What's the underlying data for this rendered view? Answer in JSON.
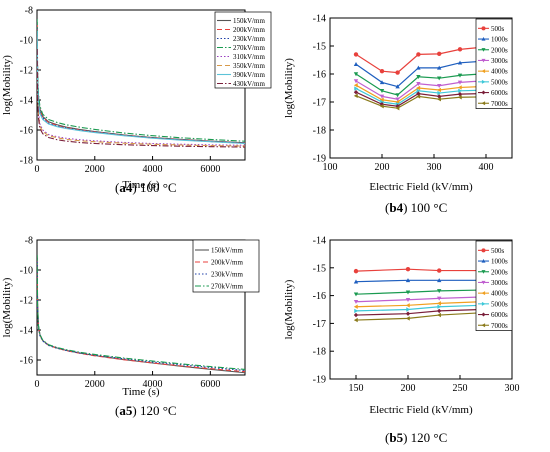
{
  "chart_data": [
    {
      "type": "line",
      "panel": "a4",
      "caption_id": "a4",
      "caption_rest": " 100 °C",
      "xlabel": "Time (s)",
      "ylabel": "log(Mobility)",
      "xlim": [
        0,
        7200
      ],
      "ylim": [
        -18,
        -8
      ],
      "xticks": [
        "0",
        "2000",
        "4000",
        "6000"
      ],
      "xtick_values": [
        0,
        2000,
        4000,
        6000
      ],
      "yticks": [
        "-8",
        "-10",
        "-12",
        "-14",
        "-16",
        "-18"
      ],
      "ytick_values": [
        -8,
        -10,
        -12,
        -14,
        -16,
        -18
      ],
      "legend_position": "top-right",
      "series": [
        {
          "name": "150kV/mm",
          "color": "#555555",
          "dash": "none",
          "x": [
            5,
            20,
            50,
            100,
            200,
            400,
            700,
            1000,
            1500,
            2000,
            3000,
            4000,
            5000,
            6000,
            7200
          ],
          "y": [
            -8.8,
            -12.2,
            -13.8,
            -14.6,
            -15.1,
            -15.45,
            -15.65,
            -15.8,
            -15.97,
            -16.1,
            -16.33,
            -16.5,
            -16.63,
            -16.74,
            -16.85
          ]
        },
        {
          "name": "200kV/mm",
          "color": "#e8413c",
          "dash": "5,3",
          "x": [
            5,
            20,
            50,
            100,
            200,
            400,
            700,
            1000,
            1500,
            2000,
            3000,
            4000,
            5000,
            6000,
            7200
          ],
          "y": [
            -9.0,
            -12.3,
            -13.9,
            -14.7,
            -15.15,
            -15.5,
            -15.7,
            -15.85,
            -16.0,
            -16.13,
            -16.35,
            -16.52,
            -16.65,
            -16.76,
            -16.88
          ]
        },
        {
          "name": "230kV/mm",
          "color": "#1f3fa8",
          "dash": "1.5,2",
          "x": [
            5,
            20,
            50,
            100,
            200,
            400,
            700,
            1000,
            1500,
            2000,
            3000,
            4000,
            5000,
            6000,
            7200
          ],
          "y": [
            -9.2,
            -12.4,
            -14.0,
            -14.8,
            -15.2,
            -15.55,
            -15.73,
            -15.87,
            -16.02,
            -16.14,
            -16.36,
            -16.53,
            -16.66,
            -16.77,
            -16.88
          ]
        },
        {
          "name": "270kV/mm",
          "color": "#1a9a50",
          "dash": "6,2,1.5,2",
          "x": [
            5,
            20,
            50,
            100,
            200,
            400,
            700,
            1000,
            1500,
            2000,
            3000,
            4000,
            5000,
            6000,
            7200
          ],
          "y": [
            -8.6,
            -12.0,
            -13.6,
            -14.4,
            -14.95,
            -15.3,
            -15.5,
            -15.65,
            -15.82,
            -15.96,
            -16.2,
            -16.38,
            -16.52,
            -16.63,
            -16.75
          ]
        },
        {
          "name": "310kV/mm",
          "color": "#9a3fc0",
          "dash": "1.5,2",
          "x": [
            5,
            20,
            50,
            100,
            200,
            400,
            700,
            1000,
            1500,
            2000,
            3000,
            4000,
            5000,
            6000,
            7200
          ],
          "y": [
            -10.2,
            -13.2,
            -14.8,
            -15.6,
            -16.0,
            -16.3,
            -16.45,
            -16.55,
            -16.65,
            -16.72,
            -16.83,
            -16.9,
            -16.95,
            -16.99,
            -17.02
          ]
        },
        {
          "name": "350kV/mm",
          "color": "#d89a4a",
          "dash": "5,3",
          "x": [
            5,
            20,
            50,
            100,
            200,
            400,
            700,
            1000,
            1500,
            2000,
            3000,
            4000,
            5000,
            6000,
            7200
          ],
          "y": [
            -10.4,
            -13.4,
            -15.0,
            -15.75,
            -16.1,
            -16.38,
            -16.52,
            -16.62,
            -16.72,
            -16.78,
            -16.88,
            -16.95,
            -17.0,
            -17.04,
            -17.07
          ]
        },
        {
          "name": "390kV/mm",
          "color": "#5cc3d8",
          "dash": "none",
          "x": [
            5,
            20,
            50,
            100,
            200,
            400,
            700,
            1000,
            1500,
            2000,
            3000,
            4000,
            5000,
            6000,
            7200
          ],
          "y": [
            -9.4,
            -12.5,
            -14.1,
            -14.9,
            -15.3,
            -15.6,
            -15.78,
            -15.9,
            -16.05,
            -16.17,
            -16.38,
            -16.55,
            -16.68,
            -16.78,
            -16.9
          ]
        },
        {
          "name": "430kV/mm",
          "color": "#7a1f3a",
          "dash": "6,2,1.5,2",
          "x": [
            5,
            20,
            50,
            100,
            200,
            400,
            700,
            1000,
            1500,
            2000,
            3000,
            4000,
            5000,
            6000,
            7200
          ],
          "y": [
            -10.6,
            -13.6,
            -15.2,
            -15.9,
            -16.25,
            -16.5,
            -16.65,
            -16.74,
            -16.84,
            -16.9,
            -16.98,
            -17.04,
            -17.08,
            -17.11,
            -17.14
          ]
        }
      ]
    },
    {
      "type": "line",
      "panel": "b4",
      "caption_id": "b4",
      "caption_rest": " 100 °C",
      "xlabel": "Electric Field (kV/mm)",
      "ylabel": "log(Mobility)",
      "xlim": [
        100,
        450
      ],
      "ylim": [
        -19,
        -14
      ],
      "xticks": [
        "100",
        "200",
        "300",
        "400"
      ],
      "xtick_values": [
        100,
        200,
        300,
        400
      ],
      "yticks": [
        "-14",
        "-15",
        "-16",
        "-17",
        "-18",
        "-19"
      ],
      "ytick_values": [
        -14,
        -15,
        -16,
        -17,
        -18,
        -19
      ],
      "legend_position": "top-right",
      "x": [
        150,
        200,
        230,
        270,
        310,
        350,
        390
      ],
      "series": [
        {
          "name": "500s",
          "color": "#e8413c",
          "marker": "circle",
          "values": [
            -15.3,
            -15.9,
            -15.95,
            -15.3,
            -15.28,
            -15.12,
            -15.05
          ]
        },
        {
          "name": "1000s",
          "color": "#1f5fbf",
          "marker": "triangle",
          "values": [
            -15.65,
            -16.3,
            -16.45,
            -15.78,
            -15.78,
            -15.6,
            -15.55
          ]
        },
        {
          "name": "2000s",
          "color": "#1a9a50",
          "marker": "triangle-down",
          "values": [
            -16.0,
            -16.6,
            -16.75,
            -16.1,
            -16.15,
            -16.05,
            -16.0
          ]
        },
        {
          "name": "3000s",
          "color": "#c060d0",
          "marker": "triangle-down",
          "values": [
            -16.25,
            -16.8,
            -16.9,
            -16.35,
            -16.42,
            -16.3,
            -16.25
          ]
        },
        {
          "name": "4000s",
          "color": "#f0a020",
          "marker": "triangle-left",
          "values": [
            -16.4,
            -16.92,
            -17.0,
            -16.5,
            -16.57,
            -16.48,
            -16.45
          ]
        },
        {
          "name": "5000s",
          "color": "#3fc8d8",
          "marker": "triangle-right",
          "values": [
            -16.52,
            -17.0,
            -17.08,
            -16.6,
            -16.68,
            -16.6,
            -16.58
          ]
        },
        {
          "name": "6000s",
          "color": "#7a1f3a",
          "marker": "diamond",
          "values": [
            -16.65,
            -17.08,
            -17.15,
            -16.7,
            -16.8,
            -16.72,
            -16.7
          ]
        },
        {
          "name": "7000s",
          "color": "#8a7a1a",
          "marker": "triangle-left",
          "values": [
            -16.78,
            -17.15,
            -17.22,
            -16.8,
            -16.9,
            -16.83,
            -16.82
          ]
        }
      ]
    },
    {
      "type": "line",
      "panel": "a5",
      "caption_id": "a5",
      "caption_rest": " 120 °C",
      "xlabel": "Time (s)",
      "ylabel": "log(Mobility)",
      "xlim": [
        0,
        7200
      ],
      "ylim": [
        -17,
        -8
      ],
      "xticks": [
        "0",
        "2000",
        "4000",
        "6000"
      ],
      "xtick_values": [
        0,
        2000,
        4000,
        6000
      ],
      "yticks": [
        "-8",
        "-10",
        "-12",
        "-14",
        "-16"
      ],
      "ytick_values": [
        -8,
        -10,
        -12,
        -14,
        -16
      ],
      "legend_position": "top-right",
      "series": [
        {
          "name": "150kV/mm",
          "color": "#555555",
          "dash": "none",
          "x": [
            5,
            20,
            50,
            100,
            200,
            400,
            700,
            1000,
            1500,
            2000,
            3000,
            4000,
            5000,
            6000,
            7200
          ],
          "y": [
            -9.0,
            -12.3,
            -13.7,
            -14.3,
            -14.7,
            -15.0,
            -15.2,
            -15.35,
            -15.55,
            -15.7,
            -15.97,
            -16.2,
            -16.42,
            -16.62,
            -16.85
          ]
        },
        {
          "name": "200kV/mm",
          "color": "#e8413c",
          "dash": "5,3",
          "x": [
            5,
            20,
            50,
            100,
            200,
            400,
            700,
            1000,
            1500,
            2000,
            3000,
            4000,
            5000,
            6000,
            7200
          ],
          "y": [
            -9.1,
            -12.4,
            -13.75,
            -14.35,
            -14.72,
            -15.02,
            -15.22,
            -15.37,
            -15.56,
            -15.72,
            -15.98,
            -16.2,
            -16.4,
            -16.58,
            -16.78
          ]
        },
        {
          "name": "230kV/mm",
          "color": "#1f3fa8",
          "dash": "1.5,2",
          "x": [
            5,
            20,
            50,
            100,
            200,
            400,
            700,
            1000,
            1500,
            2000,
            3000,
            4000,
            5000,
            6000,
            7200
          ],
          "y": [
            -9.2,
            -12.45,
            -13.8,
            -14.38,
            -14.74,
            -15.03,
            -15.22,
            -15.36,
            -15.54,
            -15.68,
            -15.92,
            -16.13,
            -16.32,
            -16.5,
            -16.7
          ]
        },
        {
          "name": "270kV/mm",
          "color": "#1a9a50",
          "dash": "6,2,1.5,2",
          "x": [
            5,
            20,
            50,
            100,
            200,
            400,
            700,
            1000,
            1500,
            2000,
            3000,
            4000,
            5000,
            6000,
            7200
          ],
          "y": [
            -9.0,
            -12.3,
            -13.7,
            -14.3,
            -14.68,
            -14.98,
            -15.17,
            -15.31,
            -15.49,
            -15.63,
            -15.87,
            -16.07,
            -16.26,
            -16.44,
            -16.63
          ]
        }
      ]
    },
    {
      "type": "line",
      "panel": "b5",
      "caption_id": "b5",
      "caption_rest": " 120 °C",
      "xlabel": "Electric Field (kV/mm)",
      "ylabel": "log(Mobility)",
      "xlim": [
        125,
        300
      ],
      "ylim": [
        -19,
        -14
      ],
      "xticks": [
        "150",
        "200",
        "250",
        "300"
      ],
      "xtick_values": [
        150,
        200,
        250,
        300
      ],
      "yticks": [
        "-14",
        "-15",
        "-16",
        "-17",
        "-18",
        "-19"
      ],
      "ytick_values": [
        -14,
        -15,
        -16,
        -17,
        -18,
        -19
      ],
      "legend_position": "top-right",
      "x": [
        150,
        200,
        230,
        270
      ],
      "series": [
        {
          "name": "500s",
          "color": "#e8413c",
          "marker": "circle",
          "values": [
            -15.12,
            -15.05,
            -15.1,
            -15.1
          ]
        },
        {
          "name": "1000s",
          "color": "#1f5fbf",
          "marker": "triangle",
          "values": [
            -15.5,
            -15.45,
            -15.45,
            -15.45
          ]
        },
        {
          "name": "2000s",
          "color": "#1a9a50",
          "marker": "triangle-down",
          "values": [
            -15.95,
            -15.88,
            -15.83,
            -15.8
          ]
        },
        {
          "name": "3000s",
          "color": "#c060d0",
          "marker": "triangle-down",
          "values": [
            -16.22,
            -16.15,
            -16.1,
            -16.05
          ]
        },
        {
          "name": "4000s",
          "color": "#f0a020",
          "marker": "triangle-left",
          "values": [
            -16.4,
            -16.35,
            -16.28,
            -16.22
          ]
        },
        {
          "name": "5000s",
          "color": "#3fc8d8",
          "marker": "triangle-right",
          "values": [
            -16.55,
            -16.5,
            -16.4,
            -16.35
          ]
        },
        {
          "name": "6000s",
          "color": "#7a1f3a",
          "marker": "diamond",
          "values": [
            -16.7,
            -16.65,
            -16.55,
            -16.5
          ]
        },
        {
          "name": "7000s",
          "color": "#8a7a1a",
          "marker": "triangle-left",
          "values": [
            -16.88,
            -16.82,
            -16.7,
            -16.62
          ]
        }
      ]
    }
  ]
}
